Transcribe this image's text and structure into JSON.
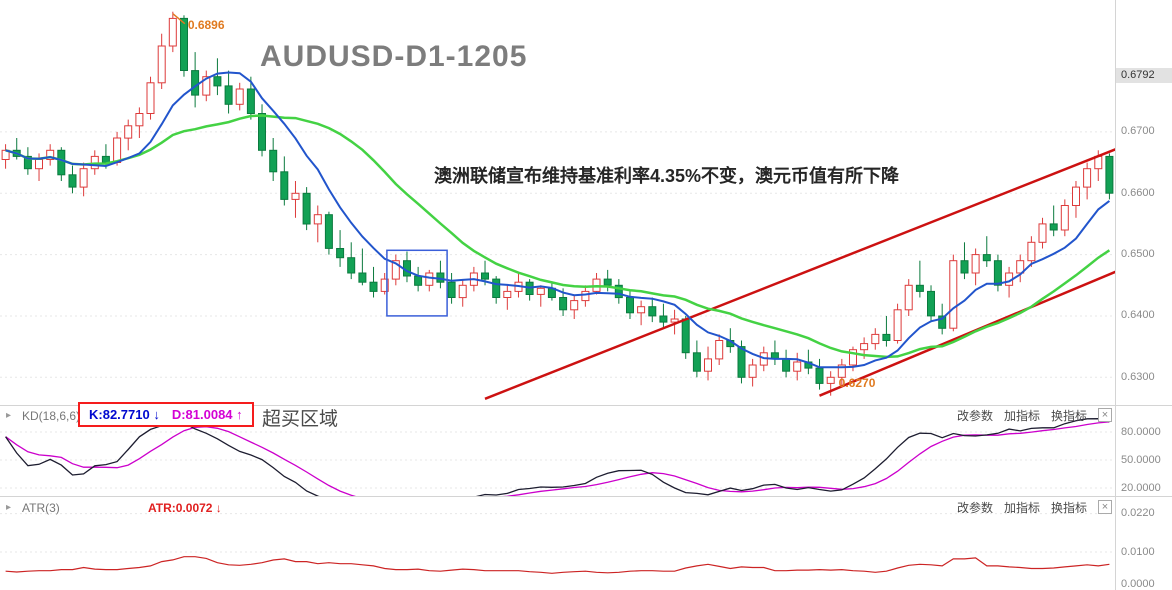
{
  "title": "AUDUSD-D1-1205",
  "annotations": {
    "peak_price": "0.6896",
    "low_price": "0.6270",
    "news": "澳洲联储宣布维持基准利率4.35%不变，澳元币值有所下降",
    "overbought": "超买区域"
  },
  "colors": {
    "up": "#dd3a3a",
    "up_fill": "#ffffff",
    "down": "#12a155",
    "down_border": "#0b7a3e",
    "ma_fast": "#2255cc",
    "ma_slow": "#44d244",
    "trend": "#cc1111",
    "k_line": "#1d1d30",
    "d_line": "#cc00cc",
    "atr_line": "#cc2424",
    "box_blue": "#3a5fd9",
    "annotation_orange": "#e07a20"
  },
  "chart_data": {
    "type": "candlestick",
    "title": "AUDUSD-D1-1205",
    "price_range": [
      0.6255,
      0.6915
    ],
    "price_axis_labels": [
      {
        "label": "0.6792",
        "value": 0.6792,
        "highlight": true
      },
      {
        "label": "0.6700",
        "value": 0.67
      },
      {
        "label": "0.6600",
        "value": 0.66
      },
      {
        "label": "0.6500",
        "value": 0.65
      },
      {
        "label": "0.6400",
        "value": 0.64
      },
      {
        "label": "0.6300",
        "value": 0.63
      }
    ],
    "ohlc": [
      [
        0.6655,
        0.668,
        0.664,
        0.667
      ],
      [
        0.667,
        0.669,
        0.6655,
        0.666
      ],
      [
        0.666,
        0.6675,
        0.663,
        0.664
      ],
      [
        0.664,
        0.6665,
        0.662,
        0.6655
      ],
      [
        0.6655,
        0.668,
        0.6645,
        0.667
      ],
      [
        0.667,
        0.6675,
        0.662,
        0.663
      ],
      [
        0.663,
        0.6645,
        0.66,
        0.661
      ],
      [
        0.661,
        0.665,
        0.6595,
        0.664
      ],
      [
        0.664,
        0.667,
        0.663,
        0.666
      ],
      [
        0.666,
        0.668,
        0.664,
        0.665
      ],
      [
        0.665,
        0.67,
        0.6645,
        0.669
      ],
      [
        0.669,
        0.672,
        0.667,
        0.671
      ],
      [
        0.671,
        0.674,
        0.669,
        0.673
      ],
      [
        0.673,
        0.679,
        0.672,
        0.678
      ],
      [
        0.678,
        0.686,
        0.677,
        0.684
      ],
      [
        0.684,
        0.6896,
        0.683,
        0.6885
      ],
      [
        0.6885,
        0.689,
        0.679,
        0.68
      ],
      [
        0.68,
        0.683,
        0.674,
        0.676
      ],
      [
        0.676,
        0.68,
        0.675,
        0.679
      ],
      [
        0.679,
        0.682,
        0.676,
        0.6775
      ],
      [
        0.6775,
        0.68,
        0.673,
        0.6745
      ],
      [
        0.6745,
        0.678,
        0.6735,
        0.677
      ],
      [
        0.677,
        0.679,
        0.672,
        0.673
      ],
      [
        0.673,
        0.6745,
        0.666,
        0.667
      ],
      [
        0.667,
        0.669,
        0.662,
        0.6635
      ],
      [
        0.6635,
        0.666,
        0.658,
        0.659
      ],
      [
        0.659,
        0.662,
        0.656,
        0.66
      ],
      [
        0.66,
        0.661,
        0.654,
        0.655
      ],
      [
        0.655,
        0.658,
        0.652,
        0.6565
      ],
      [
        0.6565,
        0.657,
        0.65,
        0.651
      ],
      [
        0.651,
        0.654,
        0.648,
        0.6495
      ],
      [
        0.6495,
        0.652,
        0.646,
        0.647
      ],
      [
        0.647,
        0.651,
        0.645,
        0.6455
      ],
      [
        0.6455,
        0.648,
        0.643,
        0.644
      ],
      [
        0.644,
        0.647,
        0.6435,
        0.646
      ],
      [
        0.646,
        0.65,
        0.645,
        0.649
      ],
      [
        0.649,
        0.6505,
        0.6455,
        0.6465
      ],
      [
        0.6465,
        0.648,
        0.644,
        0.645
      ],
      [
        0.645,
        0.6475,
        0.644,
        0.647
      ],
      [
        0.647,
        0.649,
        0.6445,
        0.6455
      ],
      [
        0.6455,
        0.647,
        0.642,
        0.643
      ],
      [
        0.643,
        0.646,
        0.6415,
        0.645
      ],
      [
        0.645,
        0.648,
        0.644,
        0.647
      ],
      [
        0.647,
        0.649,
        0.645,
        0.646
      ],
      [
        0.646,
        0.6465,
        0.642,
        0.643
      ],
      [
        0.643,
        0.645,
        0.641,
        0.644
      ],
      [
        0.644,
        0.647,
        0.643,
        0.6455
      ],
      [
        0.6455,
        0.646,
        0.6425,
        0.6435
      ],
      [
        0.6435,
        0.645,
        0.6415,
        0.6445
      ],
      [
        0.6445,
        0.6455,
        0.6425,
        0.643
      ],
      [
        0.643,
        0.6445,
        0.64,
        0.641
      ],
      [
        0.641,
        0.6435,
        0.6395,
        0.6425
      ],
      [
        0.6425,
        0.645,
        0.6415,
        0.644
      ],
      [
        0.644,
        0.647,
        0.6435,
        0.646
      ],
      [
        0.646,
        0.6475,
        0.644,
        0.645
      ],
      [
        0.645,
        0.646,
        0.642,
        0.643
      ],
      [
        0.643,
        0.644,
        0.6395,
        0.6405
      ],
      [
        0.6405,
        0.6425,
        0.6385,
        0.6415
      ],
      [
        0.6415,
        0.643,
        0.639,
        0.64
      ],
      [
        0.64,
        0.642,
        0.638,
        0.639
      ],
      [
        0.639,
        0.641,
        0.637,
        0.6395
      ],
      [
        0.6395,
        0.64,
        0.633,
        0.634
      ],
      [
        0.634,
        0.636,
        0.63,
        0.631
      ],
      [
        0.631,
        0.635,
        0.6295,
        0.633
      ],
      [
        0.633,
        0.637,
        0.632,
        0.636
      ],
      [
        0.636,
        0.638,
        0.634,
        0.635
      ],
      [
        0.635,
        0.636,
        0.629,
        0.63
      ],
      [
        0.63,
        0.633,
        0.6285,
        0.632
      ],
      [
        0.632,
        0.635,
        0.631,
        0.634
      ],
      [
        0.634,
        0.636,
        0.632,
        0.633
      ],
      [
        0.633,
        0.6345,
        0.63,
        0.631
      ],
      [
        0.631,
        0.634,
        0.6295,
        0.6325
      ],
      [
        0.6325,
        0.6345,
        0.6305,
        0.6315
      ],
      [
        0.6315,
        0.633,
        0.628,
        0.629
      ],
      [
        0.629,
        0.631,
        0.627,
        0.63
      ],
      [
        0.63,
        0.633,
        0.6285,
        0.632
      ],
      [
        0.632,
        0.635,
        0.631,
        0.6345
      ],
      [
        0.6345,
        0.6365,
        0.633,
        0.6355
      ],
      [
        0.6355,
        0.638,
        0.6345,
        0.637
      ],
      [
        0.637,
        0.64,
        0.635,
        0.636
      ],
      [
        0.636,
        0.642,
        0.6355,
        0.641
      ],
      [
        0.641,
        0.646,
        0.64,
        0.645
      ],
      [
        0.645,
        0.649,
        0.643,
        0.644
      ],
      [
        0.644,
        0.645,
        0.639,
        0.64
      ],
      [
        0.64,
        0.642,
        0.637,
        0.638
      ],
      [
        0.638,
        0.65,
        0.6375,
        0.649
      ],
      [
        0.649,
        0.652,
        0.646,
        0.647
      ],
      [
        0.647,
        0.651,
        0.645,
        0.65
      ],
      [
        0.65,
        0.653,
        0.648,
        0.649
      ],
      [
        0.649,
        0.65,
        0.644,
        0.645
      ],
      [
        0.645,
        0.648,
        0.643,
        0.647
      ],
      [
        0.647,
        0.65,
        0.6455,
        0.649
      ],
      [
        0.649,
        0.653,
        0.648,
        0.652
      ],
      [
        0.652,
        0.656,
        0.651,
        0.655
      ],
      [
        0.655,
        0.658,
        0.653,
        0.654
      ],
      [
        0.654,
        0.659,
        0.653,
        0.658
      ],
      [
        0.658,
        0.662,
        0.656,
        0.661
      ],
      [
        0.661,
        0.665,
        0.659,
        0.664
      ],
      [
        0.664,
        0.667,
        0.662,
        0.666
      ],
      [
        0.666,
        0.6665,
        0.659,
        0.66
      ]
    ],
    "overlays": {
      "ma_fast_period": 8,
      "ma_slow_period": 20,
      "trendlines": [
        {
          "i1": 43,
          "p1": 0.6265,
          "i2": 101,
          "p2": 0.6682
        },
        {
          "i1": 73,
          "p1": 0.627,
          "i2": 101,
          "p2": 0.6483
        }
      ],
      "highlight_box": {
        "i1": 34.2,
        "i2": 39.6,
        "p1": 0.64,
        "p2": 0.6507
      }
    },
    "indicators": {
      "kd": {
        "params": "KD(18,6,6)",
        "k_value": 82.771,
        "d_value": 81.0084,
        "axis": [
          {
            "label": "80.0000",
            "value": 80
          },
          {
            "label": "50.0000",
            "value": 50
          },
          {
            "label": "20.0000",
            "value": 20
          }
        ]
      },
      "atr": {
        "params": "ATR(3)",
        "value": 0.0072,
        "axis": [
          {
            "label": "0.0220",
            "value": 0.022
          },
          {
            "label": "0.0100",
            "value": 0.01
          },
          {
            "label": "0.0000",
            "value": 0.0
          }
        ]
      }
    }
  },
  "kd_panel": {
    "collapse_icon": "▸",
    "label": "KD(18,6,6)",
    "k_text": "K:82.7710 ↓",
    "d_text": "D:81.0084 ↑",
    "buttons": [
      "改参数",
      "加指标",
      "换指标"
    ],
    "close_label": "×"
  },
  "atr_panel": {
    "collapse_icon": "▸",
    "label": "ATR(3)",
    "value_text": "ATR:0.0072 ↓",
    "buttons": [
      "改参数",
      "加指标",
      "换指标"
    ],
    "close_label": "×"
  }
}
